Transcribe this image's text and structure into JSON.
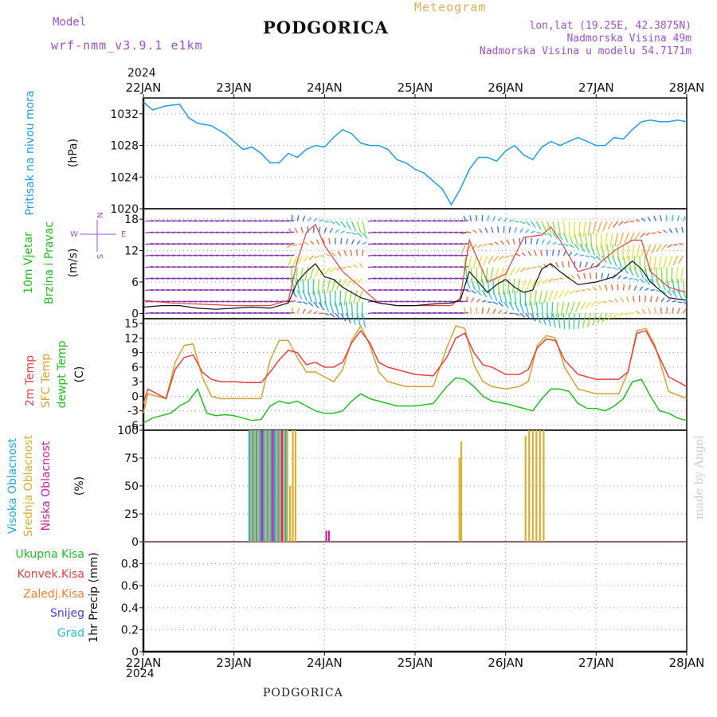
{
  "header": {
    "model_label": "Model",
    "model_name": "wrf-nmm_v3.9.1  e1km",
    "station": "PODGORICA",
    "title": "Meteogram",
    "coords": "lon,lat (19.25E, 42.3875N)",
    "elevation": "Nadmorska Visina 49m",
    "model_elevation": "Nadmorska Visina u modelu 54.7171m",
    "year_top": "2024",
    "year_bottom": "2024"
  },
  "footer": {
    "station": "PODGORICA",
    "credit": "made by Angel"
  },
  "colors": {
    "pressure": "#1e9ee8",
    "t2m": "#e84040",
    "sfc": "#d8a030",
    "dew": "#20c020",
    "wind_speed": "#111111",
    "gust": "#e84040",
    "high_cloud": "#1ea8e8",
    "mid_cloud": "#d8b030",
    "low_cloud": "#d020a0"
  },
  "chart_data": [
    {
      "type": "line",
      "panel": "pressure",
      "labels": [
        "Pritisak na nivou mora",
        "(hPa)"
      ],
      "x_ticks": [
        "22JAN",
        "23JAN",
        "24JAN",
        "25JAN",
        "26JAN",
        "27JAN",
        "28JAN"
      ],
      "x_days": [
        0,
        6
      ],
      "ylim": [
        1020,
        1034
      ],
      "yticks": [
        1020,
        1024,
        1028,
        1032
      ],
      "grid": true,
      "series": [
        {
          "name": "Pritisak na nivou mora",
          "x": [
            0,
            0.1,
            0.25,
            0.4,
            0.5,
            0.6,
            0.75,
            0.9,
            1.0,
            1.1,
            1.2,
            1.3,
            1.4,
            1.5,
            1.6,
            1.7,
            1.75,
            1.8,
            1.9,
            2.0,
            2.1,
            2.2,
            2.3,
            2.4,
            2.5,
            2.6,
            2.7,
            2.8,
            2.9,
            3.0,
            3.1,
            3.2,
            3.3,
            3.4,
            3.5,
            3.6,
            3.7,
            3.8,
            3.9,
            4.0,
            4.1,
            4.2,
            4.3,
            4.4,
            4.5,
            4.6,
            4.7,
            4.8,
            4.9,
            5.0,
            5.1,
            5.2,
            5.3,
            5.4,
            5.5,
            5.6,
            5.7,
            5.8,
            5.9,
            6.0
          ],
          "values": [
            1033.5,
            1032.5,
            1033.0,
            1033.2,
            1031.5,
            1030.8,
            1030.5,
            1029.5,
            1028.5,
            1027.5,
            1027.8,
            1027.0,
            1025.8,
            1025.8,
            1027.0,
            1026.5,
            1027.0,
            1027.5,
            1028.0,
            1027.8,
            1029.0,
            1030.0,
            1029.5,
            1028.3,
            1028.0,
            1028.0,
            1027.5,
            1026.2,
            1025.8,
            1025.0,
            1024.5,
            1023.5,
            1022.5,
            1020.5,
            1022.5,
            1025.0,
            1026.5,
            1026.5,
            1026.0,
            1027.3,
            1028.0,
            1026.8,
            1026.2,
            1027.8,
            1028.5,
            1028.0,
            1028.5,
            1029.0,
            1028.5,
            1028.0,
            1028.0,
            1029.0,
            1028.8,
            1030.0,
            1031.0,
            1031.2,
            1031.0,
            1031.0,
            1031.2,
            1031.0
          ]
        }
      ]
    },
    {
      "type": "line",
      "panel": "wind",
      "labels": [
        "10m Vjetar",
        "Brzina i Pravac",
        "(m/s)"
      ],
      "compass": [
        "N",
        "W",
        "E",
        "S"
      ],
      "ylim": [
        -1,
        20
      ],
      "yticks": [
        0,
        6,
        12,
        18
      ],
      "grid": true,
      "series": [
        {
          "name": "Brzina",
          "x": [
            0,
            0.2,
            0.4,
            0.6,
            0.8,
            1.0,
            1.2,
            1.4,
            1.6,
            1.7,
            1.8,
            1.9,
            2.0,
            2.1,
            2.2,
            2.3,
            2.4,
            2.5,
            2.6,
            2.8,
            3.0,
            3.2,
            3.4,
            3.5,
            3.6,
            3.7,
            3.8,
            3.9,
            4.0,
            4.1,
            4.2,
            4.3,
            4.4,
            4.5,
            4.6,
            4.8,
            5.0,
            5.2,
            5.4,
            5.5,
            5.6,
            5.8,
            6.0
          ],
          "values": [
            1.2,
            1.5,
            1.5,
            1.0,
            0.8,
            1.0,
            1.2,
            1.0,
            2.0,
            6.0,
            8.0,
            9.5,
            7.0,
            6.5,
            5.0,
            4.0,
            3.0,
            2.5,
            2.0,
            1.5,
            1.5,
            1.8,
            2.0,
            2.5,
            8.0,
            6.0,
            4.0,
            5.5,
            6.5,
            5.0,
            4.0,
            4.5,
            8.5,
            9.5,
            8.0,
            5.5,
            6.0,
            7.0,
            10.0,
            8.5,
            6.0,
            3.0,
            2.5
          ]
        },
        {
          "name": "Udari",
          "x": [
            0,
            0.3,
            0.6,
            1.0,
            1.4,
            1.6,
            1.7,
            1.8,
            1.9,
            2.0,
            2.2,
            2.4,
            2.6,
            2.8,
            3.0,
            3.4,
            3.5,
            3.6,
            3.7,
            3.8,
            4.0,
            4.2,
            4.4,
            4.5,
            4.6,
            4.8,
            5.0,
            5.2,
            5.4,
            5.5,
            5.6,
            5.8,
            6.0
          ],
          "values": [
            2.5,
            2.0,
            1.8,
            1.5,
            1.5,
            2.5,
            10.0,
            15.5,
            17.0,
            13.0,
            8.0,
            5.0,
            2.0,
            1.5,
            1.5,
            1.5,
            3.0,
            14.0,
            10.0,
            6.0,
            7.5,
            14.5,
            15.0,
            16.5,
            14.0,
            8.0,
            9.0,
            12.0,
            14.0,
            14.0,
            8.0,
            5.0,
            4.0
          ]
        }
      ]
    },
    {
      "type": "line",
      "panel": "temperature",
      "labels": [
        "2m Temp",
        "SFC Temp",
        "dewpt Temp",
        "(C)"
      ],
      "ylim": [
        -7,
        16
      ],
      "yticks": [
        -6,
        -3,
        0,
        3,
        6,
        9,
        12,
        15
      ],
      "grid": true,
      "series": [
        {
          "name": "2m Temp",
          "x": [
            0,
            0.05,
            0.15,
            0.25,
            0.35,
            0.45,
            0.55,
            0.65,
            0.75,
            0.85,
            1.0,
            1.15,
            1.3,
            1.4,
            1.5,
            1.6,
            1.7,
            1.8,
            1.9,
            2.0,
            2.1,
            2.2,
            2.3,
            2.4,
            2.5,
            2.6,
            2.7,
            2.9,
            3.0,
            3.2,
            3.35,
            3.45,
            3.55,
            3.65,
            3.75,
            3.85,
            4.0,
            4.15,
            4.25,
            4.35,
            4.45,
            4.55,
            4.65,
            4.8,
            5.0,
            5.15,
            5.25,
            5.35,
            5.45,
            5.55,
            5.65,
            5.8,
            6.0
          ],
          "values": [
            -1.5,
            1.5,
            0.5,
            -0.5,
            5.5,
            8.0,
            8.5,
            5.0,
            3.5,
            3.0,
            3.0,
            2.8,
            2.8,
            5.0,
            7.5,
            9.5,
            9.0,
            6.5,
            7.0,
            6.0,
            6.0,
            7.0,
            11.0,
            13.5,
            11.0,
            7.0,
            6.0,
            5.0,
            4.5,
            4.2,
            8.0,
            12.0,
            13.0,
            9.0,
            6.5,
            6.0,
            4.5,
            4.5,
            5.5,
            10.0,
            11.8,
            11.5,
            7.5,
            4.5,
            3.5,
            3.5,
            3.5,
            5.0,
            13.0,
            13.5,
            10.0,
            4.0,
            2.0
          ]
        },
        {
          "name": "SFC Temp",
          "x": [
            0,
            0.05,
            0.15,
            0.25,
            0.35,
            0.45,
            0.55,
            0.65,
            0.75,
            0.85,
            1.0,
            1.15,
            1.3,
            1.4,
            1.5,
            1.6,
            1.7,
            1.8,
            1.9,
            2.0,
            2.1,
            2.2,
            2.3,
            2.4,
            2.5,
            2.6,
            2.7,
            2.9,
            3.0,
            3.2,
            3.35,
            3.45,
            3.55,
            3.65,
            3.75,
            3.85,
            4.0,
            4.15,
            4.25,
            4.35,
            4.45,
            4.55,
            4.65,
            4.8,
            5.0,
            5.15,
            5.25,
            5.35,
            5.45,
            5.55,
            5.65,
            5.8,
            6.0
          ],
          "values": [
            -3.5,
            0.5,
            0.0,
            -0.5,
            7.0,
            10.5,
            10.8,
            4.0,
            0.0,
            -0.5,
            -0.5,
            -0.5,
            -0.5,
            7.5,
            11.5,
            11.5,
            8.0,
            5.0,
            5.0,
            4.0,
            3.0,
            5.5,
            11.5,
            14.5,
            10.5,
            5.0,
            3.0,
            2.0,
            2.0,
            2.0,
            10.0,
            14.5,
            14.0,
            6.5,
            3.0,
            2.0,
            1.5,
            2.0,
            3.0,
            10.5,
            12.5,
            12.0,
            6.0,
            1.5,
            0.5,
            0.5,
            0.5,
            5.0,
            13.5,
            14.0,
            10.5,
            1.0,
            -0.5
          ]
        },
        {
          "name": "dewpt Temp",
          "x": [
            0,
            0.1,
            0.2,
            0.3,
            0.4,
            0.5,
            0.6,
            0.7,
            0.8,
            0.9,
            1.0,
            1.1,
            1.2,
            1.3,
            1.4,
            1.5,
            1.6,
            1.7,
            1.8,
            1.9,
            2.0,
            2.1,
            2.2,
            2.3,
            2.4,
            2.5,
            2.6,
            2.7,
            2.8,
            2.9,
            3.0,
            3.2,
            3.35,
            3.45,
            3.55,
            3.65,
            3.75,
            3.85,
            4.0,
            4.1,
            4.2,
            4.3,
            4.4,
            4.5,
            4.6,
            4.7,
            4.8,
            4.9,
            5.0,
            5.1,
            5.2,
            5.3,
            5.4,
            5.5,
            5.6,
            5.7,
            5.8,
            5.9,
            6.0
          ],
          "values": [
            -5.5,
            -4.5,
            -4.0,
            -3.5,
            -2.0,
            -1.0,
            1.5,
            -3.5,
            -4.0,
            -3.8,
            -4.0,
            -4.5,
            -5.0,
            -4.8,
            -2.0,
            -1.0,
            -1.5,
            -1.0,
            -2.0,
            -3.0,
            -3.5,
            -3.5,
            -3.0,
            -1.0,
            0.5,
            -0.5,
            -1.0,
            -1.5,
            -2.0,
            -2.0,
            -2.0,
            -1.5,
            2.0,
            3.8,
            3.5,
            2.0,
            0.0,
            -1.0,
            -1.5,
            -2.0,
            -2.5,
            -3.0,
            -0.5,
            1.5,
            1.5,
            1.0,
            -1.5,
            -2.5,
            -2.5,
            -3.0,
            -2.0,
            -0.5,
            3.0,
            3.5,
            0.0,
            -3.0,
            -3.5,
            -4.5,
            -5.0
          ]
        }
      ]
    },
    {
      "type": "bar",
      "panel": "cloud",
      "labels": [
        "Visoka Oblacnost",
        "Srednja Oblacnost",
        "Niska Oblacnost",
        "(%)"
      ],
      "ylim": [
        0,
        100
      ],
      "yticks": [
        0,
        25,
        50,
        75,
        100
      ],
      "grid": true,
      "series": [
        {
          "name": "Visoka Oblacnost",
          "x": [
            1.17,
            1.21,
            1.25,
            1.29,
            1.33,
            1.37,
            1.41,
            1.45,
            1.49,
            1.53,
            1.57
          ],
          "values": [
            100,
            100,
            100,
            100,
            100,
            100,
            100,
            100,
            100,
            100,
            100
          ]
        },
        {
          "name": "Srednja Oblacnost",
          "x": [
            1.19,
            1.23,
            1.27,
            1.31,
            1.35,
            1.39,
            1.43,
            1.47,
            1.51,
            1.55,
            1.59,
            1.62,
            1.65,
            1.68,
            3.49,
            3.51,
            4.22,
            4.26,
            4.3,
            4.34,
            4.38,
            4.42
          ],
          "values": [
            100,
            100,
            100,
            100,
            100,
            100,
            100,
            100,
            100,
            100,
            100,
            50,
            100,
            100,
            75,
            90,
            95,
            100,
            100,
            100,
            100,
            100
          ]
        },
        {
          "name": "Niska Oblacnost",
          "x": [
            1.31,
            1.43,
            1.53,
            2.02,
            2.05
          ],
          "values": [
            100,
            100,
            100,
            10,
            10
          ]
        }
      ]
    },
    {
      "type": "bar",
      "panel": "precip",
      "labels": [
        "Ukupna Kisa",
        "Konvek.Kisa",
        "Zaledj.Kisa",
        "Snijeg",
        "Grad",
        "1hr Precip (mm)"
      ],
      "ylim": [
        0,
        1.0
      ],
      "yticks": [
        0,
        0.2,
        0.4,
        0.6,
        0.8
      ],
      "grid": true,
      "series": []
    }
  ]
}
